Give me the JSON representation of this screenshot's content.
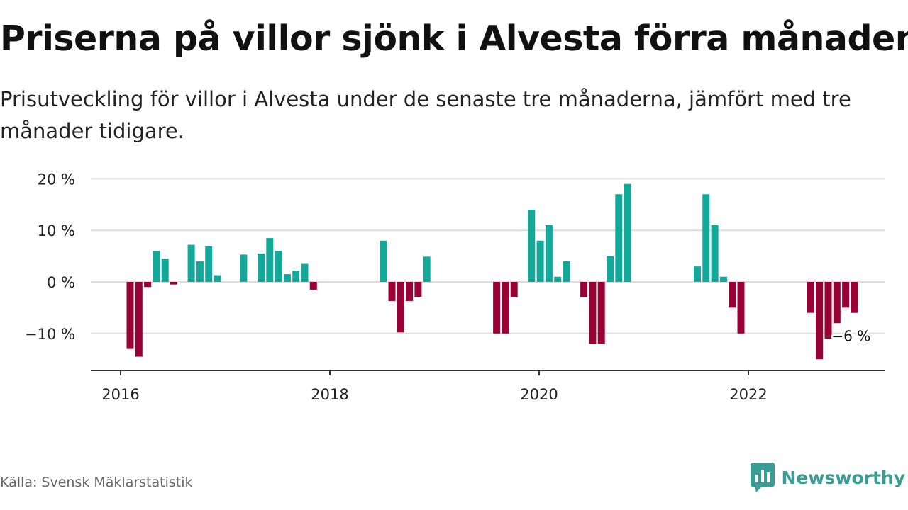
{
  "title": "Priserna på villor sjönk i Alvesta förra månaden",
  "subtitle": "Prisutveckling för villor i Alvesta under de senaste tre månaderna, jämfört med tre månader tidigare.",
  "source": "Källa: Svensk Mäklarstatistik",
  "brand": {
    "name": "Newsworthy",
    "icon": "newsworthy-logo-icon"
  },
  "colors": {
    "positive": "#12a89a",
    "negative": "#990033",
    "grid": "#dddddd",
    "axis": "#333333",
    "brand": "#3a9c92"
  },
  "chart_data": {
    "type": "bar",
    "title": "Priserna på villor sjönk i Alvesta förra månaden",
    "xlabel": "",
    "ylabel": "",
    "x_ticks": [
      "2016",
      "2018",
      "2020",
      "2022"
    ],
    "y_ticks": [
      "20 %",
      "10 %",
      "0 %",
      "−10 %"
    ],
    "y_tick_values": [
      20,
      10,
      0,
      -10
    ],
    "ylim": [
      -17,
      21
    ],
    "grid": true,
    "end_label": "−6 %",
    "unit": "%",
    "x": [
      "2016-01",
      "2016-02",
      "2016-03",
      "2016-04",
      "2016-05",
      "2016-06",
      "2016-07",
      "2016-08",
      "2016-09",
      "2016-10",
      "2016-11",
      "2016-12",
      "2017-01",
      "2017-02",
      "2017-03",
      "2017-04",
      "2017-05",
      "2017-06",
      "2017-07",
      "2017-08",
      "2017-09",
      "2017-10",
      "2017-11",
      "2017-12",
      "2018-01",
      "2018-02",
      "2018-03",
      "2018-04",
      "2018-05",
      "2018-06",
      "2018-07",
      "2018-08",
      "2018-09",
      "2018-10",
      "2018-11",
      "2018-12",
      "2019-01",
      "2019-02",
      "2019-03",
      "2019-04",
      "2019-05",
      "2019-06",
      "2019-07",
      "2019-08",
      "2019-09",
      "2019-10",
      "2019-11",
      "2019-12",
      "2020-01",
      "2020-02",
      "2020-03",
      "2020-04",
      "2020-05",
      "2020-06",
      "2020-07",
      "2020-08",
      "2020-09",
      "2020-10",
      "2020-11",
      "2020-12",
      "2021-01",
      "2021-02",
      "2021-03",
      "2021-04",
      "2021-05",
      "2021-06",
      "2021-07",
      "2021-08",
      "2021-09",
      "2021-10",
      "2021-11",
      "2021-12",
      "2022-01",
      "2022-02",
      "2022-03",
      "2022-04",
      "2022-05",
      "2022-06",
      "2022-07",
      "2022-08",
      "2022-09",
      "2022-10",
      "2022-11",
      "2022-12"
    ],
    "values": [
      -13,
      -14.5,
      -1,
      6,
      4.5,
      -0.5,
      null,
      7.2,
      4,
      6.9,
      1.3,
      null,
      null,
      5.3,
      null,
      5.5,
      8.5,
      6,
      1.5,
      2.2,
      3.5,
      -1.5,
      null,
      null,
      null,
      null,
      null,
      null,
      null,
      8,
      -3.7,
      -9.8,
      -3.7,
      -2.9,
      4.9,
      null,
      null,
      null,
      null,
      null,
      null,
      null,
      -10,
      -10,
      -3,
      null,
      14,
      8,
      11,
      1,
      4,
      null,
      -3,
      -12,
      -12,
      5,
      17,
      19,
      null,
      null,
      null,
      null,
      null,
      null,
      null,
      3,
      17,
      11,
      1,
      -5,
      -10,
      null,
      null,
      null,
      null,
      null,
      null,
      null,
      -6,
      -15,
      -11,
      -8,
      -5,
      -6
    ]
  }
}
